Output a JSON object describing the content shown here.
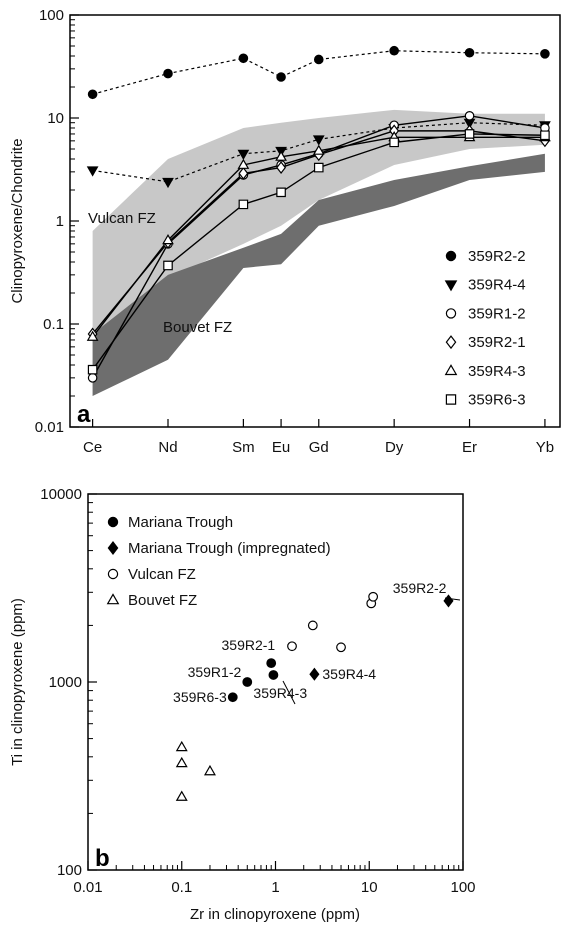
{
  "chart_data": [
    {
      "panel": "a",
      "type": "line",
      "ylabel": "Clinopyroxene/Chondrite",
      "y_scale": "log",
      "ylim": [
        0.01,
        100
      ],
      "y_ticks": [
        "0.01",
        "0.1",
        "1",
        "10",
        "100"
      ],
      "categories": [
        "Ce",
        "Nd",
        "Sm",
        "Eu",
        "Gd",
        "Dy",
        "Er",
        "Yb"
      ],
      "x_positions": [
        1,
        3,
        5,
        6,
        7,
        9,
        11,
        13
      ],
      "legend_position": "bottom-right",
      "regions": [
        {
          "name": "Vulcan FZ",
          "color": "#c8c8c8",
          "upper": [
            0.8,
            4.0,
            8.0,
            9.0,
            10.0,
            12.0,
            11.0,
            11.0
          ],
          "lower": [
            0.02,
            0.28,
            0.6,
            0.9,
            1.6,
            3.5,
            5.0,
            5.5
          ]
        },
        {
          "name": "Bouvet FZ",
          "color": "#6e6e6e",
          "upper": [
            0.08,
            0.3,
            0.55,
            0.75,
            1.6,
            2.5,
            3.4,
            4.5
          ],
          "lower": [
            0.02,
            0.045,
            0.35,
            0.38,
            0.9,
            1.4,
            2.5,
            3.0
          ]
        }
      ],
      "series": [
        {
          "name": "359R2-2",
          "marker": "filled-circle",
          "line": "dashed",
          "values": [
            17,
            27,
            38,
            25,
            37,
            45,
            43,
            42
          ]
        },
        {
          "name": "359R4-4",
          "marker": "filled-triangle-down",
          "line": "dashed",
          "values": [
            3.1,
            2.4,
            4.5,
            4.8,
            6.2,
            8.0,
            9.0,
            8.5
          ]
        },
        {
          "name": "359R1-2",
          "marker": "open-circle",
          "line": "solid",
          "values": [
            0.03,
            0.6,
            2.8,
            3.5,
            4.5,
            8.5,
            10.5,
            8.0
          ]
        },
        {
          "name": "359R2-1",
          "marker": "open-diamond",
          "line": "solid",
          "values": [
            0.08,
            0.62,
            2.9,
            3.3,
            4.4,
            7.5,
            7.5,
            6.0
          ]
        },
        {
          "name": "359R4-3",
          "marker": "open-triangle-up",
          "line": "solid",
          "values": [
            0.075,
            0.65,
            3.5,
            4.2,
            4.8,
            6.5,
            6.5,
            6.5
          ]
        },
        {
          "name": "359R6-3",
          "marker": "open-square",
          "line": "solid",
          "values": [
            0.036,
            0.37,
            1.45,
            1.9,
            3.3,
            5.8,
            7.0,
            6.8
          ]
        }
      ]
    },
    {
      "panel": "b",
      "type": "scatter",
      "xlabel": "Zr in clinopyroxene (ppm)",
      "ylabel": "Ti in clinopyroxene (ppm)",
      "x_scale": "log",
      "y_scale": "log",
      "xlim": [
        0.01,
        100
      ],
      "ylim": [
        100,
        10000
      ],
      "x_ticks": [
        "0.01",
        "0.1",
        "1",
        "10",
        "100"
      ],
      "y_ticks": [
        "100",
        "1000",
        "10000"
      ],
      "legend_position": "top-left",
      "series": [
        {
          "name": "Mariana Trough",
          "marker": "filled-circle",
          "points": [
            [
              0.35,
              830
            ],
            [
              0.5,
              1000
            ],
            [
              0.9,
              1260
            ],
            [
              0.95,
              1090
            ]
          ]
        },
        {
          "name": "Mariana Trough (impregnated)",
          "marker": "filled-diamond",
          "points": [
            [
              2.6,
              1100
            ],
            [
              70,
              2700
            ]
          ]
        },
        {
          "name": "Vulcan FZ",
          "marker": "open-circle",
          "points": [
            [
              1.5,
              1550
            ],
            [
              2.5,
              2000
            ],
            [
              5,
              1530
            ],
            [
              10.5,
              2620
            ],
            [
              11,
              2840
            ]
          ]
        },
        {
          "name": "Bouvet FZ",
          "marker": "open-triangle-up",
          "points": [
            [
              0.1,
              450
            ],
            [
              0.1,
              370
            ],
            [
              0.1,
              245
            ],
            [
              0.2,
              335
            ]
          ]
        }
      ],
      "annotations": [
        {
          "text": "359R2-2",
          "x": 70,
          "y": 2700
        },
        {
          "text": "359R2-1",
          "x": 0.9,
          "y": 1260
        },
        {
          "text": "359R1-2",
          "x": 0.5,
          "y": 1000
        },
        {
          "text": "359R6-3",
          "x": 0.35,
          "y": 830
        },
        {
          "text": "359R4-3",
          "x": 0.95,
          "y": 1090
        },
        {
          "text": "359R4-4",
          "x": 2.6,
          "y": 1100
        }
      ]
    }
  ],
  "region_labels": [
    "Vulcan FZ",
    "Bouvet FZ"
  ],
  "panel_labels": [
    "a",
    "b"
  ]
}
